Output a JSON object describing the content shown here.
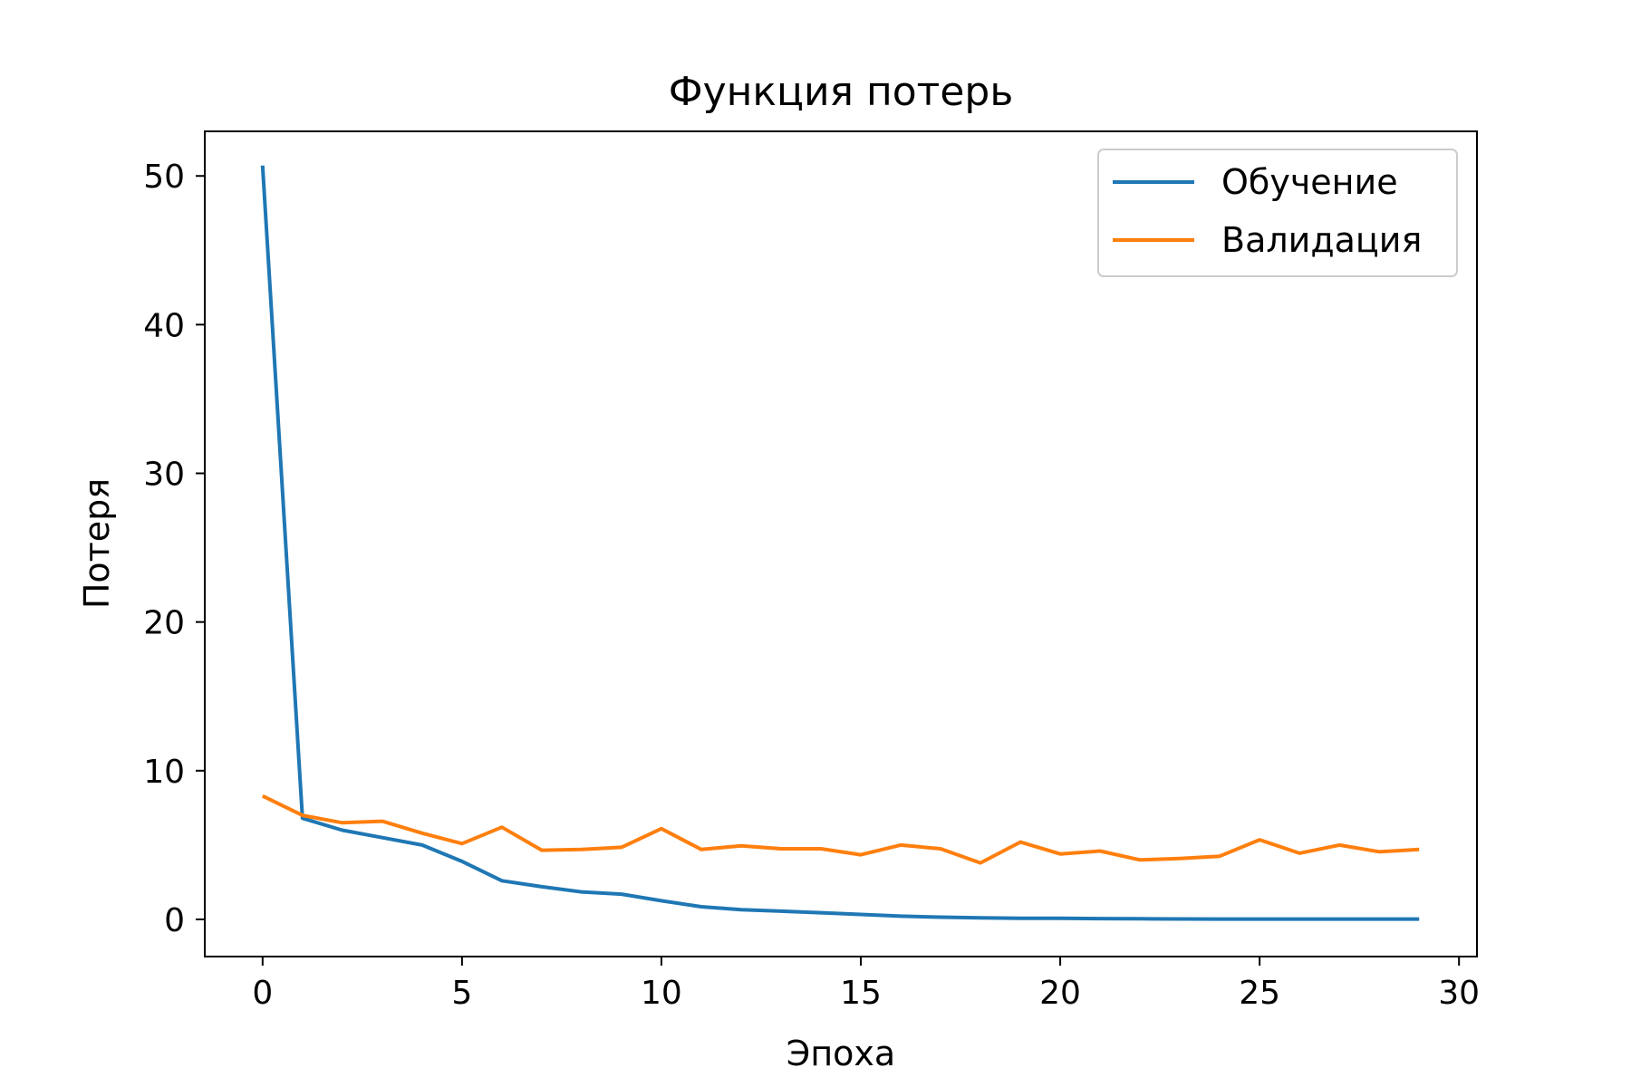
{
  "chart_data": {
    "type": "line",
    "title": "Функция потерь",
    "xlabel": "Эпоха",
    "ylabel": "Потеря",
    "xlim": [
      -1.45,
      30.45
    ],
    "ylim": [
      -2.5,
      53.0
    ],
    "xticks": [
      0,
      5,
      10,
      15,
      20,
      25,
      30
    ],
    "yticks": [
      0,
      10,
      20,
      30,
      40,
      50
    ],
    "grid": false,
    "legend_position": "top-right",
    "x": [
      0,
      1,
      2,
      3,
      4,
      5,
      6,
      7,
      8,
      9,
      10,
      11,
      12,
      13,
      14,
      15,
      16,
      17,
      18,
      19,
      20,
      21,
      22,
      23,
      24,
      25,
      26,
      27,
      28,
      29
    ],
    "series": [
      {
        "name": "Обучение",
        "color": "#1f77b4",
        "values": [
          50.7,
          6.8,
          6.0,
          5.5,
          5.0,
          3.9,
          2.6,
          2.2,
          1.85,
          1.7,
          1.25,
          0.85,
          0.65,
          0.55,
          0.45,
          0.33,
          0.22,
          0.15,
          0.11,
          0.08,
          0.07,
          0.05,
          0.04,
          0.03,
          0.02,
          0.02,
          0.02,
          0.02,
          0.02,
          0.02
        ]
      },
      {
        "name": "Валидация",
        "color": "#ff7f0e",
        "values": [
          8.3,
          7.0,
          6.5,
          6.6,
          5.8,
          5.1,
          6.2,
          4.65,
          4.7,
          4.85,
          6.1,
          4.7,
          4.95,
          4.75,
          4.75,
          4.35,
          5.0,
          4.75,
          3.8,
          5.2,
          4.4,
          4.6,
          4.0,
          4.1,
          4.25,
          5.35,
          4.45,
          5.0,
          4.55,
          4.7
        ]
      }
    ]
  }
}
